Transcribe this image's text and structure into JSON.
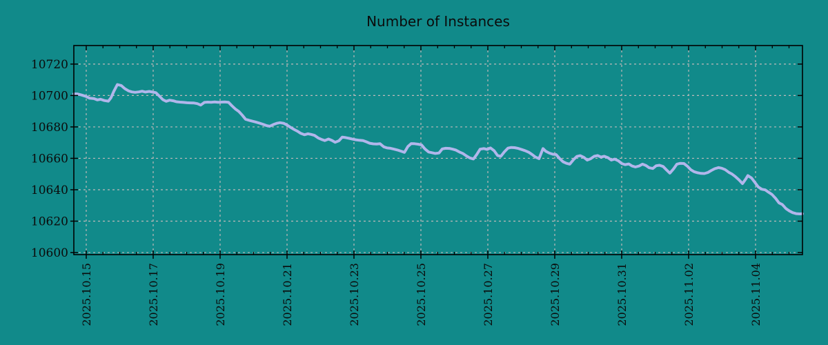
{
  "chart_data": {
    "type": "line",
    "title": "Number of Instances",
    "bg_color": "#118a8a",
    "line_color": "#b1b6eb",
    "grid_color": "#c0baba",
    "axis_color": "#000000",
    "text_color": "#0b0b0b",
    "legend": "none",
    "grid": "dashed",
    "x_tick_labels": [
      "2025.10.15",
      "2025.10.17",
      "2025.10.19",
      "2025.10.21",
      "2025.10.23",
      "2025.10.25",
      "2025.10.27",
      "2025.10.29",
      "2025.10.31",
      "2025.11.02",
      "2025.11.04"
    ],
    "x_tick_days": [
      0,
      2,
      4,
      6,
      8,
      10,
      12,
      14,
      16,
      18,
      20
    ],
    "x_minor_step_days": 0.5,
    "xlim": [
      -0.371,
      21.402
    ],
    "y_tick_labels": [
      "10600",
      "10620",
      "10640",
      "10660",
      "10680",
      "10700",
      "10720"
    ],
    "y_ticks": [
      10600,
      10620,
      10640,
      10660,
      10680,
      10700,
      10720
    ],
    "ylim": [
      10598.7,
      10731.8
    ],
    "xlabel": "",
    "ylabel": "",
    "series": [
      {
        "name": "instances",
        "points": [
          [
            -0.37,
            10701.0
          ],
          [
            -0.27,
            10701.0
          ],
          [
            -0.14,
            10700.3
          ],
          [
            0,
            10699.4
          ],
          [
            0.1,
            10698.3
          ],
          [
            0.23,
            10698.0
          ],
          [
            0.33,
            10697.2
          ],
          [
            0.43,
            10697.6
          ],
          [
            0.54,
            10696.8
          ],
          [
            0.66,
            10696.4
          ],
          [
            0.74,
            10698.6
          ],
          [
            0.82,
            10702.5
          ],
          [
            0.93,
            10707.0
          ],
          [
            1.05,
            10706.3
          ],
          [
            1.15,
            10704.4
          ],
          [
            1.26,
            10703.0
          ],
          [
            1.36,
            10702.3
          ],
          [
            1.46,
            10702.0
          ],
          [
            1.57,
            10702.3
          ],
          [
            1.67,
            10702.7
          ],
          [
            1.77,
            10702.2
          ],
          [
            1.88,
            10702.6
          ],
          [
            1.98,
            10702.2
          ],
          [
            2.08,
            10701.8
          ],
          [
            2.19,
            10699.5
          ],
          [
            2.29,
            10697.3
          ],
          [
            2.39,
            10696.3
          ],
          [
            2.49,
            10697.0
          ],
          [
            2.6,
            10696.6
          ],
          [
            2.7,
            10696.0
          ],
          [
            2.8,
            10695.8
          ],
          [
            2.91,
            10695.6
          ],
          [
            3.01,
            10695.4
          ],
          [
            3.11,
            10695.3
          ],
          [
            3.22,
            10695.2
          ],
          [
            3.32,
            10694.8
          ],
          [
            3.42,
            10693.9
          ],
          [
            3.53,
            10695.6
          ],
          [
            3.63,
            10695.8
          ],
          [
            3.73,
            10695.7
          ],
          [
            3.84,
            10695.9
          ],
          [
            3.94,
            10695.7
          ],
          [
            4.04,
            10695.8
          ],
          [
            4.14,
            10695.9
          ],
          [
            4.25,
            10695.7
          ],
          [
            4.35,
            10693.5
          ],
          [
            4.45,
            10691.5
          ],
          [
            4.56,
            10689.8
          ],
          [
            4.66,
            10687.5
          ],
          [
            4.76,
            10684.9
          ],
          [
            4.87,
            10684.2
          ],
          [
            4.97,
            10683.6
          ],
          [
            5.07,
            10683.1
          ],
          [
            5.18,
            10682.4
          ],
          [
            5.28,
            10681.7
          ],
          [
            5.38,
            10680.9
          ],
          [
            5.48,
            10680.4
          ],
          [
            5.59,
            10681.5
          ],
          [
            5.69,
            10682.3
          ],
          [
            5.79,
            10682.7
          ],
          [
            5.9,
            10682.3
          ],
          [
            6,
            10681.2
          ],
          [
            6.1,
            10679.8
          ],
          [
            6.21,
            10678.4
          ],
          [
            6.31,
            10677.3
          ],
          [
            6.41,
            10675.9
          ],
          [
            6.52,
            10675.0
          ],
          [
            6.62,
            10675.6
          ],
          [
            6.72,
            10675.2
          ],
          [
            6.82,
            10674.6
          ],
          [
            6.93,
            10673.0
          ],
          [
            7.03,
            10672.0
          ],
          [
            7.13,
            10671.3
          ],
          [
            7.24,
            10672.3
          ],
          [
            7.34,
            10671.4
          ],
          [
            7.44,
            10670.2
          ],
          [
            7.55,
            10671.2
          ],
          [
            7.65,
            10673.5
          ],
          [
            7.75,
            10673.2
          ],
          [
            7.86,
            10672.7
          ],
          [
            7.96,
            10672.2
          ],
          [
            8.06,
            10671.8
          ],
          [
            8.16,
            10671.5
          ],
          [
            8.27,
            10671.3
          ],
          [
            8.37,
            10670.5
          ],
          [
            8.47,
            10669.6
          ],
          [
            8.58,
            10669.2
          ],
          [
            8.68,
            10669.1
          ],
          [
            8.78,
            10669.3
          ],
          [
            8.89,
            10667.3
          ],
          [
            8.99,
            10666.6
          ],
          [
            9.09,
            10666.4
          ],
          [
            9.2,
            10665.8
          ],
          [
            9.3,
            10665.3
          ],
          [
            9.4,
            10664.6
          ],
          [
            9.51,
            10663.8
          ],
          [
            9.61,
            10667.5
          ],
          [
            9.71,
            10669.4
          ],
          [
            9.81,
            10669.3
          ],
          [
            9.92,
            10669.0
          ],
          [
            10.02,
            10668.5
          ],
          [
            10.12,
            10666.0
          ],
          [
            10.23,
            10664.0
          ],
          [
            10.33,
            10663.6
          ],
          [
            10.43,
            10663.1
          ],
          [
            10.54,
            10663.4
          ],
          [
            10.64,
            10666.0
          ],
          [
            10.74,
            10666.4
          ],
          [
            10.85,
            10666.3
          ],
          [
            10.95,
            10665.8
          ],
          [
            11.05,
            10665.2
          ],
          [
            11.15,
            10664.0
          ],
          [
            11.26,
            10663.0
          ],
          [
            11.36,
            10661.5
          ],
          [
            11.46,
            10660.3
          ],
          [
            11.57,
            10659.6
          ],
          [
            11.67,
            10662.5
          ],
          [
            11.77,
            10665.8
          ],
          [
            11.88,
            10666.2
          ],
          [
            11.98,
            10665.7
          ],
          [
            12.08,
            10666.6
          ],
          [
            12.19,
            10664.8
          ],
          [
            12.29,
            10661.8
          ],
          [
            12.39,
            10661.3
          ],
          [
            12.49,
            10664.0
          ],
          [
            12.6,
            10666.5
          ],
          [
            12.7,
            10666.9
          ],
          [
            12.8,
            10666.8
          ],
          [
            12.91,
            10666.3
          ],
          [
            13.01,
            10665.6
          ],
          [
            13.11,
            10664.9
          ],
          [
            13.22,
            10663.9
          ],
          [
            13.32,
            10662.5
          ],
          [
            13.42,
            10660.8
          ],
          [
            13.53,
            10659.8
          ],
          [
            13.59,
            10663.0
          ],
          [
            13.65,
            10666.2
          ],
          [
            13.73,
            10664.5
          ],
          [
            13.84,
            10663.3
          ],
          [
            13.94,
            10662.6
          ],
          [
            14.04,
            10662.4
          ],
          [
            14.14,
            10660.0
          ],
          [
            14.25,
            10657.8
          ],
          [
            14.35,
            10656.8
          ],
          [
            14.45,
            10656.3
          ],
          [
            14.56,
            10659.2
          ],
          [
            14.66,
            10661.2
          ],
          [
            14.76,
            10661.7
          ],
          [
            14.87,
            10660.6
          ],
          [
            14.97,
            10658.9
          ],
          [
            15.07,
            10659.7
          ],
          [
            15.18,
            10661.3
          ],
          [
            15.28,
            10661.8
          ],
          [
            15.38,
            10660.8
          ],
          [
            15.48,
            10661.3
          ],
          [
            15.59,
            10660.4
          ],
          [
            15.69,
            10658.9
          ],
          [
            15.79,
            10659.5
          ],
          [
            15.9,
            10658.4
          ],
          [
            16,
            10656.7
          ],
          [
            16.1,
            10656.0
          ],
          [
            16.21,
            10656.4
          ],
          [
            16.31,
            10655.1
          ],
          [
            16.41,
            10654.5
          ],
          [
            16.52,
            10655.1
          ],
          [
            16.62,
            10656.3
          ],
          [
            16.72,
            10655.5
          ],
          [
            16.82,
            10654.0
          ],
          [
            16.93,
            10653.5
          ],
          [
            17.03,
            10655.3
          ],
          [
            17.13,
            10655.6
          ],
          [
            17.24,
            10654.8
          ],
          [
            17.34,
            10652.6
          ],
          [
            17.44,
            10650.6
          ],
          [
            17.55,
            10653.3
          ],
          [
            17.65,
            10656.3
          ],
          [
            17.75,
            10656.8
          ],
          [
            17.86,
            10656.7
          ],
          [
            17.96,
            10655.0
          ],
          [
            18.06,
            10652.8
          ],
          [
            18.16,
            10651.5
          ],
          [
            18.27,
            10650.8
          ],
          [
            18.37,
            10650.4
          ],
          [
            18.47,
            10650.3
          ],
          [
            18.58,
            10651.0
          ],
          [
            18.68,
            10652.3
          ],
          [
            18.78,
            10653.4
          ],
          [
            18.89,
            10654.1
          ],
          [
            18.99,
            10653.7
          ],
          [
            19.09,
            10652.8
          ],
          [
            19.2,
            10651.1
          ],
          [
            19.3,
            10649.9
          ],
          [
            19.4,
            10648.3
          ],
          [
            19.51,
            10646.2
          ],
          [
            19.61,
            10643.9
          ],
          [
            19.71,
            10646.9
          ],
          [
            19.77,
            10649.0
          ],
          [
            19.88,
            10647.5
          ],
          [
            19.98,
            10644.7
          ],
          [
            20.08,
            10641.8
          ],
          [
            20.19,
            10640.3
          ],
          [
            20.29,
            10639.9
          ],
          [
            20.39,
            10638.4
          ],
          [
            20.49,
            10637.0
          ],
          [
            20.6,
            10634.5
          ],
          [
            20.7,
            10631.6
          ],
          [
            20.8,
            10630.6
          ],
          [
            20.91,
            10628.0
          ],
          [
            21.01,
            10626.5
          ],
          [
            21.11,
            10625.4
          ],
          [
            21.21,
            10624.8
          ],
          [
            21.32,
            10624.6
          ],
          [
            21.4,
            10624.7
          ]
        ]
      }
    ]
  }
}
